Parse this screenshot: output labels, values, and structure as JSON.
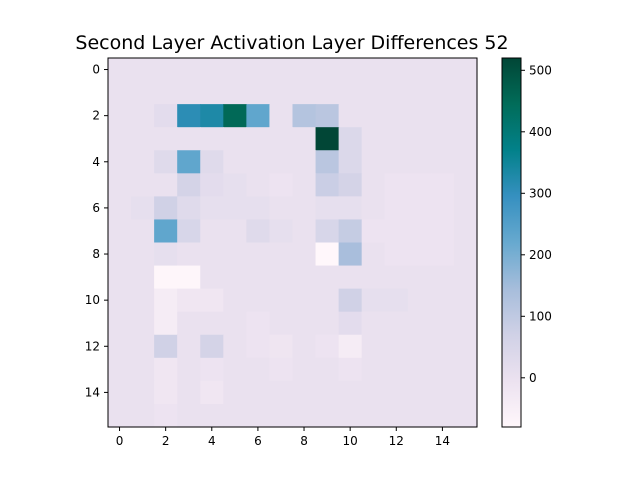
{
  "chart_data": {
    "type": "heatmap",
    "title": "Second Layer Activation Layer Differences 52",
    "xlabel": "",
    "ylabel": "",
    "rows": 16,
    "cols": 16,
    "x_ticks": [
      0,
      2,
      4,
      6,
      8,
      10,
      12,
      14
    ],
    "y_ticks": [
      0,
      2,
      4,
      6,
      8,
      10,
      12,
      14
    ],
    "colorbar": {
      "vmin": -80,
      "vmax": 520,
      "ticks": [
        0,
        100,
        200,
        300,
        400,
        500
      ],
      "colormap": "PuBuGn",
      "stops": [
        "#fff7fb",
        "#ece2f0",
        "#d0d1e6",
        "#a6bddb",
        "#67a9cf",
        "#3690c0",
        "#02818a",
        "#016c59",
        "#014636"
      ]
    },
    "values": [
      [
        0,
        0,
        0,
        0,
        0,
        0,
        0,
        0,
        0,
        0,
        0,
        0,
        0,
        0,
        0,
        0
      ],
      [
        0,
        0,
        0,
        0,
        0,
        0,
        0,
        0,
        0,
        0,
        0,
        0,
        0,
        0,
        0,
        0
      ],
      [
        0,
        0,
        20,
        310,
        330,
        450,
        230,
        0,
        120,
        110,
        0,
        0,
        0,
        0,
        0,
        0
      ],
      [
        0,
        0,
        0,
        0,
        0,
        0,
        0,
        0,
        0,
        520,
        40,
        0,
        0,
        0,
        0,
        0
      ],
      [
        0,
        0,
        30,
        230,
        30,
        0,
        0,
        0,
        0,
        110,
        40,
        0,
        0,
        0,
        0,
        0
      ],
      [
        0,
        0,
        0,
        60,
        20,
        10,
        0,
        -10,
        0,
        80,
        60,
        0,
        -10,
        -10,
        -10,
        0
      ],
      [
        0,
        10,
        70,
        30,
        10,
        10,
        10,
        0,
        0,
        10,
        10,
        0,
        -10,
        -10,
        -10,
        0
      ],
      [
        0,
        0,
        230,
        50,
        0,
        0,
        30,
        10,
        0,
        50,
        90,
        -10,
        -10,
        -10,
        -10,
        0
      ],
      [
        0,
        0,
        10,
        0,
        0,
        0,
        0,
        0,
        0,
        -80,
        140,
        0,
        -10,
        -10,
        -10,
        0
      ],
      [
        0,
        0,
        -75,
        -75,
        0,
        0,
        0,
        0,
        0,
        0,
        0,
        0,
        0,
        0,
        0,
        0
      ],
      [
        0,
        0,
        -40,
        -20,
        -20,
        0,
        0,
        0,
        0,
        0,
        70,
        10,
        10,
        0,
        0,
        0
      ],
      [
        0,
        0,
        -40,
        0,
        0,
        0,
        -10,
        0,
        0,
        0,
        20,
        0,
        0,
        0,
        0,
        0
      ],
      [
        0,
        0,
        70,
        0,
        60,
        0,
        -10,
        -15,
        0,
        -10,
        -40,
        0,
        0,
        0,
        0,
        0
      ],
      [
        0,
        0,
        -20,
        0,
        -10,
        0,
        0,
        -10,
        0,
        0,
        -10,
        0,
        0,
        0,
        0,
        0
      ],
      [
        0,
        0,
        -20,
        0,
        -20,
        0,
        0,
        0,
        0,
        0,
        0,
        0,
        0,
        0,
        0,
        0
      ],
      [
        0,
        0,
        -10,
        0,
        0,
        0,
        0,
        0,
        0,
        0,
        0,
        0,
        0,
        0,
        0,
        0
      ]
    ]
  }
}
